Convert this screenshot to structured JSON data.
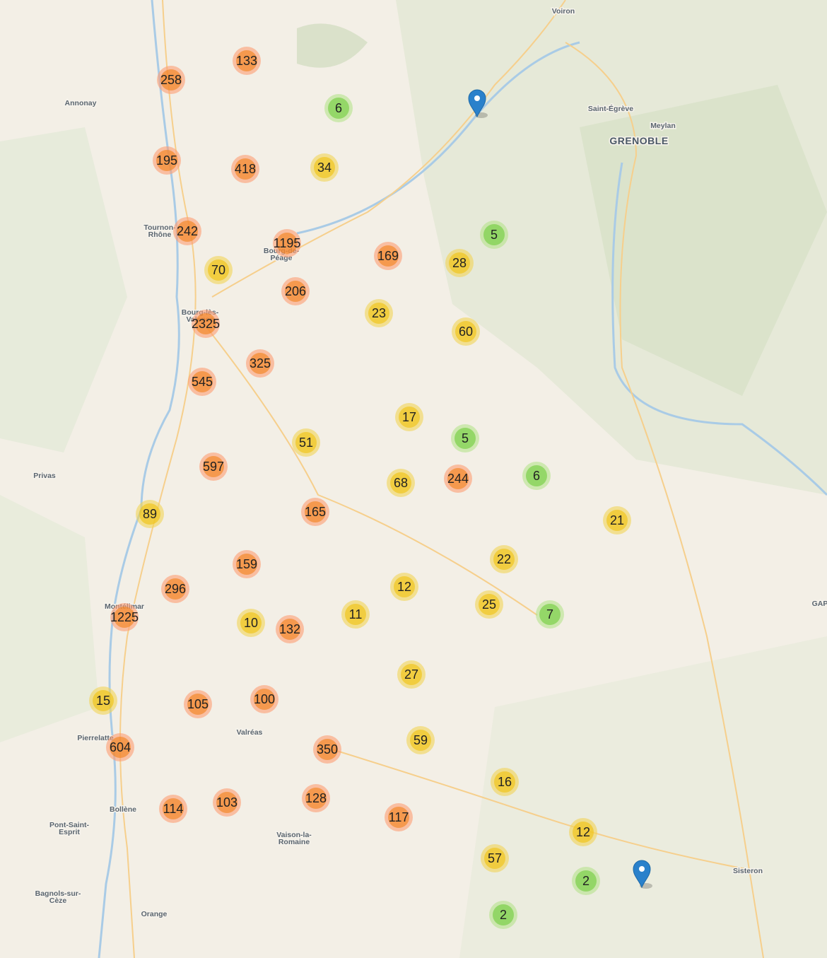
{
  "places": [
    [
      "Voiron"
    ],
    [
      "Annonay"
    ],
    [
      "Saint-Égrève"
    ],
    [
      "Meylan"
    ],
    [
      "GRENOBLE"
    ],
    [
      "Tournon-",
      "Rhône"
    ],
    [
      "Bourg-de-",
      "Péage"
    ],
    [
      "Bourg-lès-",
      "Valence"
    ],
    [
      "Privas"
    ],
    [
      "Montélimar"
    ],
    [
      "GAP"
    ],
    [
      "Pierrelatte"
    ],
    [
      "Valréas"
    ],
    [
      "Bollène"
    ],
    [
      "Pont-Saint-",
      "Esprit"
    ],
    [
      "Vaison-la-",
      "Romaine"
    ],
    [
      "Sisteron"
    ],
    [
      "Bagnols-sur-",
      "Cèze"
    ],
    [
      "Orange"
    ]
  ],
  "clusters": [
    133,
    258,
    6,
    195,
    418,
    34,
    242,
    1195,
    169,
    5,
    28,
    70,
    206,
    23,
    60,
    2325,
    325,
    545,
    17,
    5,
    51,
    597,
    68,
    244,
    6,
    21,
    89,
    165,
    22,
    159,
    12,
    296,
    25,
    7,
    1225,
    10,
    132,
    11,
    27,
    15,
    105,
    100,
    604,
    350,
    59,
    16,
    114,
    103,
    128,
    117,
    12,
    57,
    2,
    2
  ]
}
